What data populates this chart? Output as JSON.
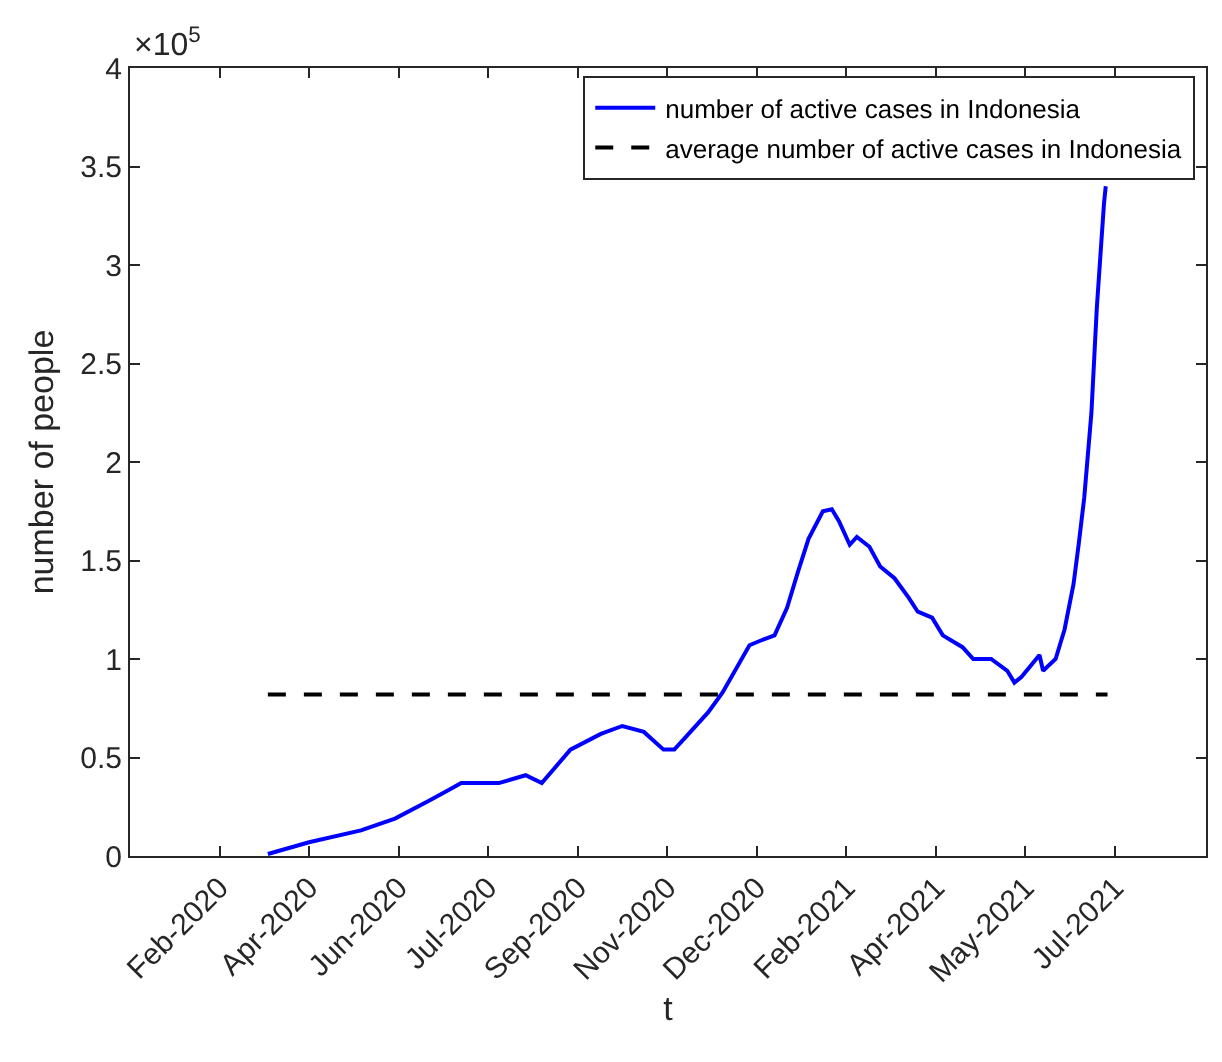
{
  "chart_data": {
    "type": "line",
    "xlabel": "t",
    "ylabel": "number of people",
    "annotations": [
      "×10$^{5}$"
    ],
    "series": [
      {
        "name": "number of active cases in Indonesia",
        "color": "#0000ff",
        "line_style": "solid",
        "x": [
          "2020-03-26",
          "2020-04-18",
          "2020-05-17",
          "2020-06-05",
          "2020-06-24",
          "2020-07-06",
          "2020-07-12",
          "2020-08-02",
          "2020-08-17",
          "2020-08-26",
          "2020-09-11",
          "2020-09-28",
          "2020-10-10",
          "2020-10-22",
          "2020-11-02",
          "2020-11-08",
          "2020-11-14",
          "2020-11-27",
          "2020-12-05",
          "2020-12-20",
          "2020-12-28",
          "2021-01-03",
          "2021-01-10",
          "2021-01-16",
          "2021-01-22",
          "2021-01-30",
          "2021-02-04",
          "2021-02-08",
          "2021-02-14",
          "2021-02-18",
          "2021-02-25",
          "2021-03-03",
          "2021-03-11",
          "2021-03-19",
          "2021-03-24",
          "2021-04-01",
          "2021-04-07",
          "2021-04-18",
          "2021-04-24",
          "2021-05-04",
          "2021-05-13",
          "2021-05-17",
          "2021-05-21",
          "2021-05-31",
          "2021-06-02",
          "2021-06-09",
          "2021-06-14",
          "2021-06-19",
          "2021-06-22",
          "2021-06-25",
          "2021-06-29",
          "2021-07-02",
          "2021-07-06",
          "2021-07-07"
        ],
        "values": [
          0.01,
          0.07,
          0.13,
          0.19,
          0.28,
          0.34,
          0.37,
          0.37,
          0.41,
          0.37,
          0.54,
          0.62,
          0.66,
          0.63,
          0.54,
          0.54,
          0.6,
          0.73,
          0.83,
          1.07,
          1.1,
          1.12,
          1.26,
          1.44,
          1.61,
          1.75,
          1.76,
          1.7,
          1.58,
          1.62,
          1.57,
          1.47,
          1.41,
          1.31,
          1.24,
          1.21,
          1.12,
          1.06,
          1.0,
          1.0,
          0.94,
          0.88,
          0.91,
          1.02,
          0.94,
          1.0,
          1.15,
          1.38,
          1.59,
          1.82,
          2.25,
          2.78,
          3.31,
          3.4
        ]
      },
      {
        "name": "average number of active cases in Indonesia",
        "color": "#000000",
        "line_style": "dashed",
        "x": [
          "2020-03-26",
          "2021-07-08"
        ],
        "values": [
          0.82,
          0.82
        ]
      }
    ],
    "xlim": [
      "2020-01-09",
      "2021-09-01"
    ],
    "xticks": [
      {
        "value": "2020-02-28",
        "label": "Feb-2020"
      },
      {
        "value": "2020-04-18",
        "label": "Apr-2020"
      },
      {
        "value": "2020-06-07",
        "label": "Jun-2020"
      },
      {
        "value": "2020-07-27",
        "label": "Jul-2020"
      },
      {
        "value": "2020-09-15",
        "label": "Sep-2020"
      },
      {
        "value": "2020-11-04",
        "label": "Nov-2020"
      },
      {
        "value": "2020-12-24",
        "label": "Dec-2020"
      },
      {
        "value": "2021-02-12",
        "label": "Feb-2021"
      },
      {
        "value": "2021-04-03",
        "label": "Apr-2021"
      },
      {
        "value": "2021-05-23",
        "label": "May-2021"
      },
      {
        "value": "2021-07-12",
        "label": "Jul-2021"
      }
    ],
    "ylim": [
      0,
      4
    ],
    "yticks": [
      0,
      0.5,
      1,
      1.5,
      2,
      2.5,
      3,
      3.5,
      4
    ],
    "legend": "top right",
    "marker": "none"
  }
}
